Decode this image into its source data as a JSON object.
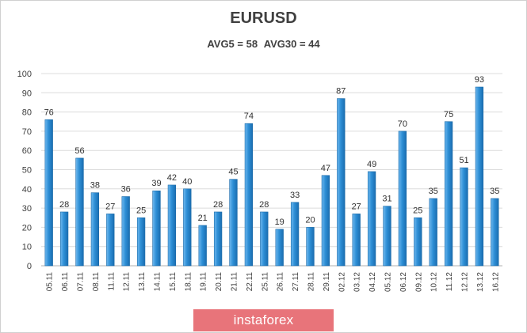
{
  "chart_data": {
    "type": "bar",
    "title": "EURUSD",
    "subtitle_parts": [
      "AVG5 = 58",
      "AVG30 = 44"
    ],
    "categories": [
      "05.11",
      "06.11",
      "07.11",
      "08.11",
      "11.11",
      "12.11",
      "13.11",
      "14.11",
      "15.11",
      "18.11",
      "19.11",
      "20.11",
      "21.11",
      "22.11",
      "25.11",
      "26.11",
      "27.11",
      "28.11",
      "29.11",
      "02.12",
      "03.12",
      "04.12",
      "05.12",
      "06.12",
      "09.12",
      "10.12",
      "11.12",
      "12.12",
      "13.12",
      "16.12"
    ],
    "values": [
      76,
      28,
      56,
      38,
      27,
      36,
      25,
      39,
      42,
      40,
      21,
      28,
      45,
      74,
      28,
      19,
      33,
      20,
      47,
      87,
      27,
      49,
      31,
      70,
      25,
      35,
      75,
      51,
      93,
      35
    ],
    "ylim": [
      0,
      100
    ],
    "yticks": [
      0,
      10,
      20,
      30,
      40,
      50,
      60,
      70,
      80,
      90,
      100
    ],
    "grid": true,
    "bar_color": "#2e8fd6",
    "xlabel": "",
    "ylabel": ""
  },
  "watermark": {
    "text": "instaforex",
    "color": "#e8747a"
  }
}
